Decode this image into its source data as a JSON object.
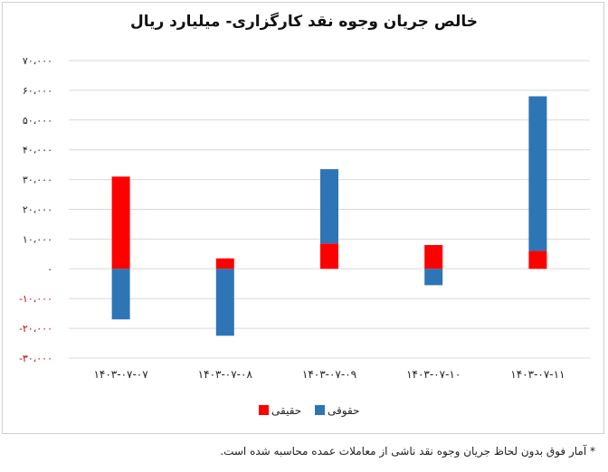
{
  "chart_data": {
    "type": "bar",
    "title": "خالص جریان وجوه نقد کارگزاری- میلیارد ریال",
    "categories": [
      "۱۴۰۳-۰۷-۰۷",
      "۱۴۰۳-۰۷-۰۸",
      "۱۴۰۳-۰۷-۰۹",
      "۱۴۰۳-۰۷-۱۰",
      "۱۴۰۳-۰۷-۱۱"
    ],
    "series": [
      {
        "name": "حقیقی",
        "color": "#ff0000",
        "values": [
          31000,
          3500,
          8500,
          8000,
          6000
        ]
      },
      {
        "name": "حقوقی",
        "color": "#2e75b6",
        "values": [
          -17000,
          -22500,
          25000,
          -5500,
          52000
        ]
      }
    ],
    "ylim": [
      -30000,
      70000
    ],
    "yticks": [
      {
        "value": 70000,
        "label": "۷۰،۰۰۰"
      },
      {
        "value": 60000,
        "label": "۶۰،۰۰۰"
      },
      {
        "value": 50000,
        "label": "۵۰،۰۰۰"
      },
      {
        "value": 40000,
        "label": "۴۰،۰۰۰"
      },
      {
        "value": 30000,
        "label": "۳۰،۰۰۰"
      },
      {
        "value": 20000,
        "label": "۲۰،۰۰۰"
      },
      {
        "value": 10000,
        "label": "۱۰،۰۰۰"
      },
      {
        "value": 0,
        "label": "۰"
      },
      {
        "value": -10000,
        "label": "-۱۰،۰۰۰"
      },
      {
        "value": -20000,
        "label": "-۲۰،۰۰۰"
      },
      {
        "value": -30000,
        "label": "-۳۰،۰۰۰"
      }
    ],
    "negative_tick_color": "#c00000",
    "stacked": true,
    "grid": true,
    "legend_position": "bottom"
  },
  "footnote": "* آمار فوق بدون لحاظ جریان وجوه نقد ناشی از معاملات عمده محاسبه شده است."
}
